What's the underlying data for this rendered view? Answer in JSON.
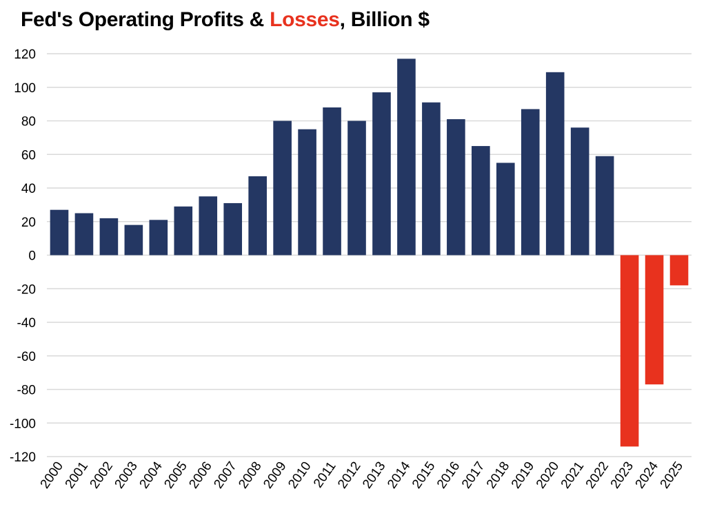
{
  "chart_data": {
    "type": "bar",
    "title": "Fed's Operating Profits & Losses, Billion $",
    "title_parts": {
      "before": "Fed's Operating Profits & ",
      "highlight": "Losses",
      "after": ", Billion $"
    },
    "xlabel": "",
    "ylabel": "",
    "categories": [
      "2000",
      "2001",
      "2002",
      "2003",
      "2004",
      "2005",
      "2006",
      "2007",
      "2008",
      "2009",
      "2010",
      "2011",
      "2012",
      "2013",
      "2014",
      "2015",
      "2016",
      "2017",
      "2018",
      "2019",
      "2020",
      "2021",
      "2022",
      "2023",
      "2024",
      "2025"
    ],
    "values": [
      27,
      25,
      22,
      18,
      21,
      29,
      35,
      31,
      47,
      80,
      75,
      88,
      80,
      97,
      117,
      91,
      81,
      65,
      55,
      87,
      109,
      76,
      59,
      -114,
      -77,
      -18
    ],
    "ylim": [
      -120,
      120
    ],
    "yticks": [
      120,
      100,
      80,
      60,
      40,
      20,
      0,
      -20,
      -40,
      -60,
      -80,
      -100,
      -120
    ],
    "ytick_labels": [
      "120",
      "100",
      "80",
      "60",
      "40",
      "20",
      "0",
      "-20",
      "-40",
      "-60",
      "-80",
      "-100",
      "-120"
    ],
    "grid": true,
    "legend": "none",
    "colors": {
      "profit": "#243763",
      "loss": "#e8321e",
      "title_highlight": "#e8321e",
      "grid": "#d9d9d9"
    }
  }
}
